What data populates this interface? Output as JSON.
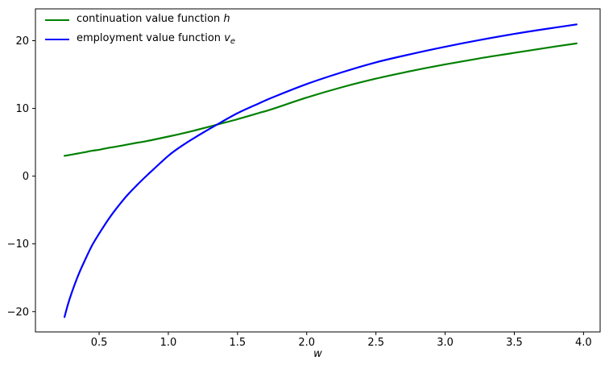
{
  "colors": {
    "continuation": "#008000",
    "employment": "#0000ff",
    "spine": "#000000",
    "tick_text": "#000000"
  },
  "legend": [
    {
      "label": "continuation value function ",
      "symbol": "h",
      "subscript": ""
    },
    {
      "label": "employment value function ",
      "symbol": "v",
      "subscript": "e"
    }
  ],
  "chart_data": {
    "type": "line",
    "title": "",
    "xlabel": "w",
    "ylabel": "",
    "xlim": [
      0.04,
      4.12
    ],
    "ylim": [
      -23.0,
      24.7
    ],
    "grid": false,
    "legend_position": "upper left",
    "xticks": [
      0.5,
      1.0,
      1.5,
      2.0,
      2.5,
      3.0,
      3.5,
      4.0
    ],
    "xtick_labels": [
      "0.5",
      "1.0",
      "1.5",
      "2.0",
      "2.5",
      "3.0",
      "3.5",
      "4.0"
    ],
    "yticks": [
      -20,
      -10,
      0,
      10,
      20
    ],
    "ytick_labels": [
      "−20",
      "−10",
      "0",
      "10",
      "20"
    ],
    "x": [
      0.25,
      0.28,
      0.32,
      0.36,
      0.4,
      0.45,
      0.5,
      0.56,
      0.62,
      0.7,
      0.78,
      0.85,
      1.0,
      1.1,
      1.2,
      1.35,
      1.5,
      1.65,
      1.75,
      2.0,
      2.25,
      2.5,
      2.75,
      3.0,
      3.25,
      3.5,
      3.75,
      3.95
    ],
    "series": [
      {
        "name": "continuation value function h",
        "color_key": "continuation",
        "values": [
          3.0,
          3.1,
          3.25,
          3.4,
          3.55,
          3.75,
          3.9,
          4.15,
          4.35,
          4.65,
          4.95,
          5.2,
          5.85,
          6.3,
          6.8,
          7.6,
          8.4,
          9.3,
          9.9,
          11.6,
          13.1,
          14.4,
          15.5,
          16.5,
          17.4,
          18.2,
          19.0,
          19.6
        ]
      },
      {
        "name": "employment value function v_e",
        "color_key": "employment",
        "values": [
          -20.8,
          -18.6,
          -16.2,
          -14.1,
          -12.3,
          -10.2,
          -8.5,
          -6.6,
          -4.9,
          -2.9,
          -1.2,
          0.2,
          3.0,
          4.5,
          5.8,
          7.6,
          9.3,
          10.7,
          11.6,
          13.6,
          15.3,
          16.8,
          18.0,
          19.1,
          20.1,
          21.0,
          21.8,
          22.4
        ]
      }
    ]
  }
}
